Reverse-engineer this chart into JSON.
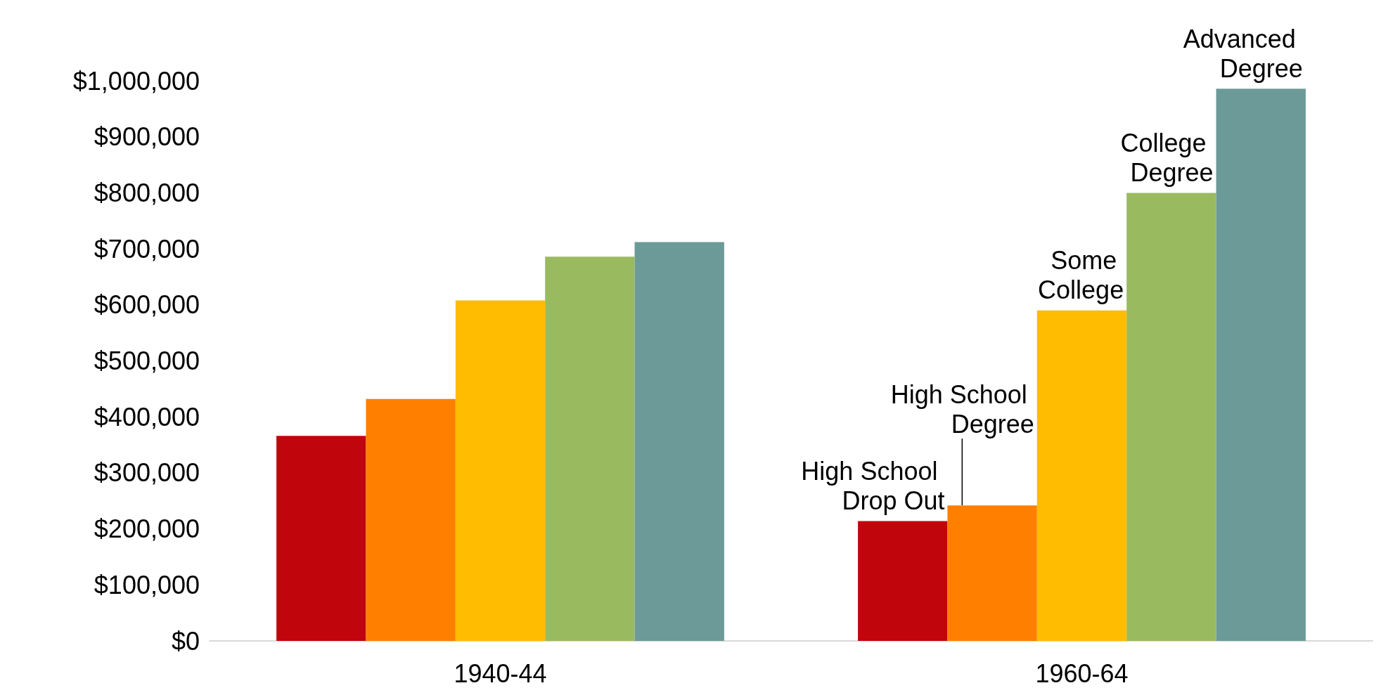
{
  "chart_data": {
    "type": "bar",
    "categories": [
      "1940-44",
      "1960-64"
    ],
    "series": [
      {
        "name": "High School Drop Out",
        "color": "#c0050c",
        "values": [
          366000,
          214000
        ]
      },
      {
        "name": "High School Degree",
        "color": "#ff7f00",
        "values": [
          432000,
          242000
        ]
      },
      {
        "name": "Some College",
        "color": "#ffbc00",
        "values": [
          608000,
          590000
        ]
      },
      {
        "name": "College Degree",
        "color": "#9aba60",
        "values": [
          686000,
          800000
        ]
      },
      {
        "name": "Advanced Degree",
        "color": "#6b9a98",
        "values": [
          712000,
          986000
        ]
      }
    ],
    "ylim": [
      0,
      1000000
    ],
    "yticks": [
      {
        "value": 0,
        "label": "$0"
      },
      {
        "value": 100000,
        "label": "$100,000"
      },
      {
        "value": 200000,
        "label": "$200,000"
      },
      {
        "value": 300000,
        "label": "$300,000"
      },
      {
        "value": 400000,
        "label": "$400,000"
      },
      {
        "value": 500000,
        "label": "$500,000"
      },
      {
        "value": 600000,
        "label": "$600,000"
      },
      {
        "value": 700000,
        "label": "$700,000"
      },
      {
        "value": 800000,
        "label": "$800,000"
      },
      {
        "value": 900000,
        "label": "$900,000"
      },
      {
        "value": 1000000,
        "label": "$1,000,000"
      }
    ],
    "grid": false,
    "legend": false
  }
}
